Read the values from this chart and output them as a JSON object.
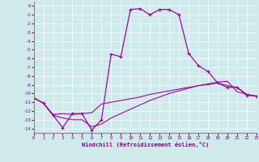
{
  "xlabel": "Windchill (Refroidissement éolien,°C)",
  "background_color": "#ceeaea",
  "grid_color": "#b8d8d8",
  "line_color": "#aa00aa",
  "xlim": [
    0,
    23
  ],
  "ylim": [
    -14.5,
    0.5
  ],
  "yticks": [
    0,
    -1,
    -2,
    -3,
    -4,
    -5,
    -6,
    -7,
    -8,
    -9,
    -10,
    -11,
    -12,
    -13,
    -14
  ],
  "xticks": [
    0,
    1,
    2,
    3,
    4,
    5,
    6,
    7,
    8,
    9,
    10,
    11,
    12,
    13,
    14,
    15,
    16,
    17,
    18,
    19,
    20,
    21,
    22,
    23
  ],
  "hours": [
    0,
    1,
    2,
    3,
    4,
    5,
    6,
    7,
    8,
    9,
    10,
    11,
    12,
    13,
    14,
    15,
    16,
    17,
    18,
    19,
    20,
    21,
    22,
    23
  ],
  "line_main": [
    -10.5,
    -11.1,
    -12.5,
    -13.9,
    -12.3,
    -12.3,
    -14.2,
    -13.0,
    -5.5,
    -5.8,
    -0.4,
    -0.3,
    -1.0,
    -0.4,
    -0.4,
    -1.0,
    -5.4,
    -6.8,
    -7.5,
    -8.8,
    -9.3,
    -9.3,
    -10.2,
    -10.3
  ],
  "line2": [
    -10.5,
    -11.1,
    -12.4,
    -12.3,
    -12.4,
    -12.3,
    -12.2,
    -11.2,
    -11.0,
    -10.8,
    -10.6,
    -10.4,
    -10.1,
    -9.9,
    -9.7,
    -9.5,
    -9.3,
    -9.1,
    -9.0,
    -8.8,
    -9.1,
    -9.3,
    -10.1,
    -10.3
  ],
  "line3": [
    -10.5,
    -11.1,
    -12.5,
    -12.8,
    -13.0,
    -13.0,
    -13.8,
    -13.5,
    -12.8,
    -12.3,
    -11.8,
    -11.3,
    -10.8,
    -10.4,
    -10.0,
    -9.7,
    -9.4,
    -9.1,
    -8.9,
    -8.7,
    -8.6,
    -9.8,
    -10.1,
    -10.3
  ]
}
